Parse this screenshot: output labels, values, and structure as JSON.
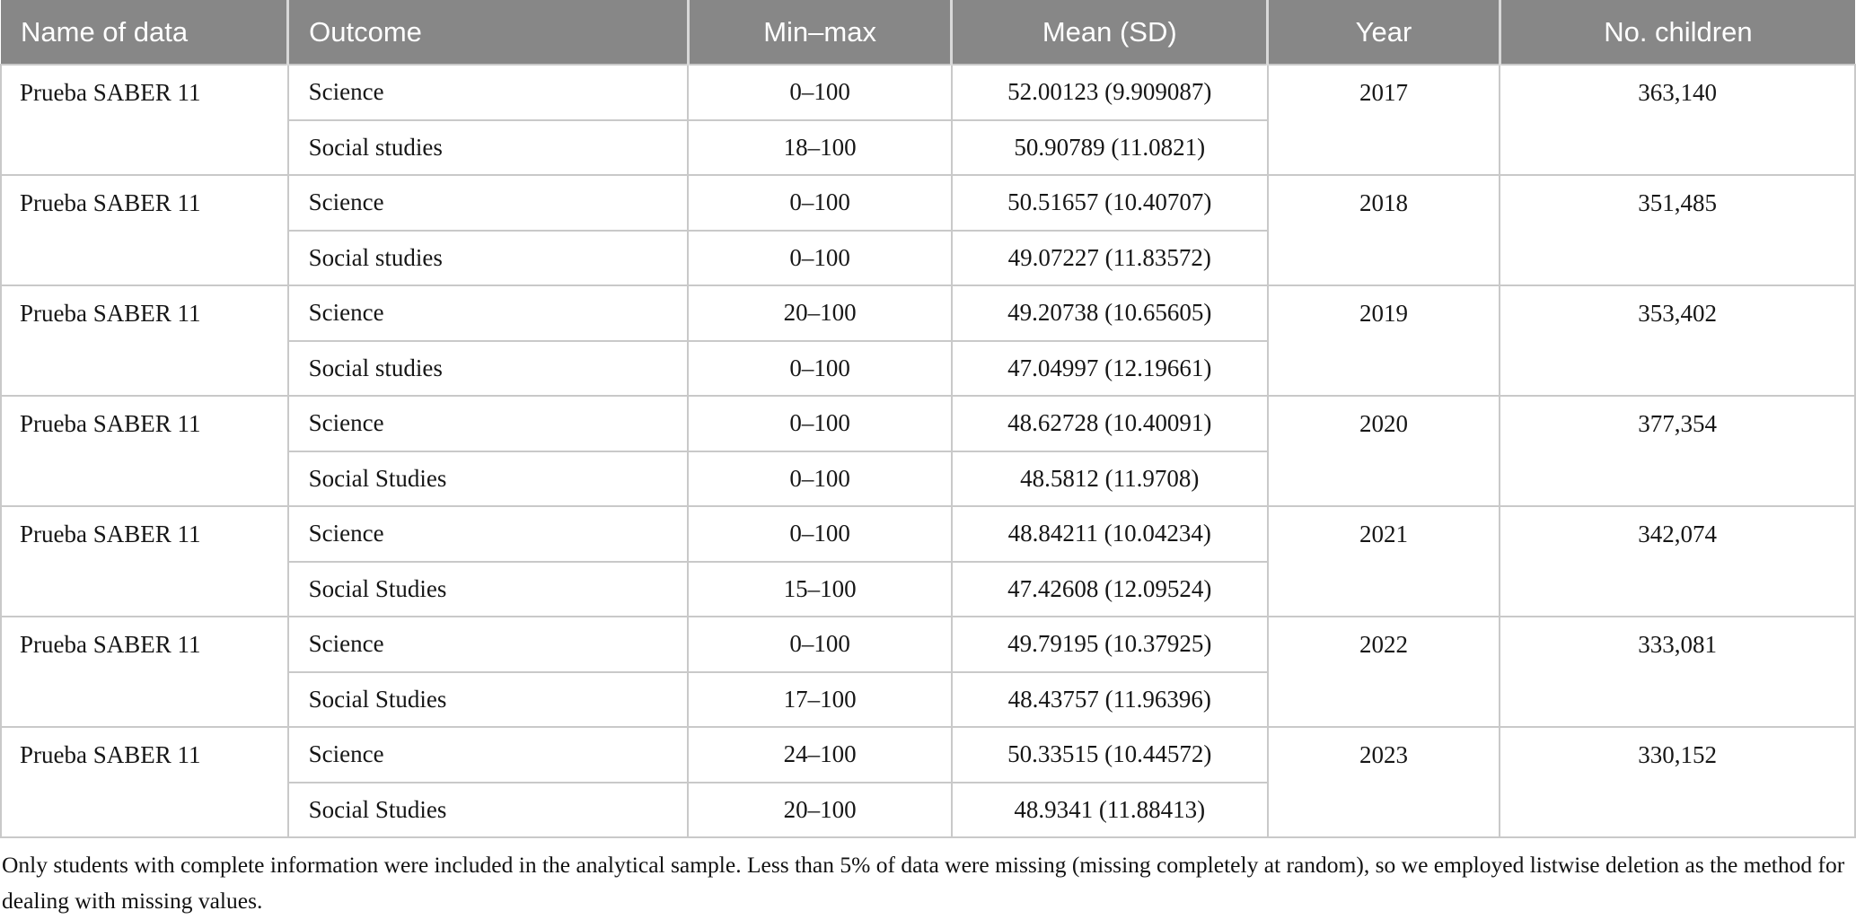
{
  "colors": {
    "header_background": "#878787",
    "header_text": "#ffffff",
    "border": "#c9c9c9",
    "body_text": "#161616"
  },
  "table": {
    "columns": [
      "Name of data",
      "Outcome",
      "Min–max",
      "Mean (SD)",
      "Year",
      "No. children"
    ],
    "groups": [
      {
        "name": "Prueba SABER 11",
        "year": "2017",
        "children": "363,140",
        "rows": [
          {
            "outcome": "Science",
            "min_max": "0–100",
            "mean_sd": "52.00123 (9.909087)"
          },
          {
            "outcome": "Social studies",
            "min_max": "18–100",
            "mean_sd": "50.90789 (11.0821)"
          }
        ]
      },
      {
        "name": "Prueba SABER 11",
        "year": "2018",
        "children": "351,485",
        "rows": [
          {
            "outcome": "Science",
            "min_max": "0–100",
            "mean_sd": "50.51657 (10.40707)"
          },
          {
            "outcome": "Social studies",
            "min_max": "0–100",
            "mean_sd": "49.07227 (11.83572)"
          }
        ]
      },
      {
        "name": "Prueba SABER 11",
        "year": "2019",
        "children": "353,402",
        "rows": [
          {
            "outcome": "Science",
            "min_max": "20–100",
            "mean_sd": "49.20738 (10.65605)"
          },
          {
            "outcome": "Social studies",
            "min_max": "0–100",
            "mean_sd": "47.04997 (12.19661)"
          }
        ]
      },
      {
        "name": "Prueba SABER 11",
        "year": "2020",
        "children": "377,354",
        "rows": [
          {
            "outcome": "Science",
            "min_max": "0–100",
            "mean_sd": "48.62728 (10.40091)"
          },
          {
            "outcome": "Social Studies",
            "min_max": "0–100",
            "mean_sd": "48.5812 (11.9708)"
          }
        ]
      },
      {
        "name": "Prueba SABER 11",
        "year": "2021",
        "children": "342,074",
        "rows": [
          {
            "outcome": "Science",
            "min_max": "0–100",
            "mean_sd": "48.84211 (10.04234)"
          },
          {
            "outcome": "Social Studies",
            "min_max": "15–100",
            "mean_sd": "47.42608 (12.09524)"
          }
        ]
      },
      {
        "name": "Prueba SABER 11",
        "year": "2022",
        "children": "333,081",
        "rows": [
          {
            "outcome": "Science",
            "min_max": "0–100",
            "mean_sd": "49.79195 (10.37925)"
          },
          {
            "outcome": "Social Studies",
            "min_max": "17–100",
            "mean_sd": "48.43757 (11.96396)"
          }
        ]
      },
      {
        "name": "Prueba SABER 11",
        "year": "2023",
        "children": "330,152",
        "rows": [
          {
            "outcome": "Science",
            "min_max": "24–100",
            "mean_sd": "50.33515 (10.44572)"
          },
          {
            "outcome": "Social Studies",
            "min_max": "20–100",
            "mean_sd": "48.9341 (11.88413)"
          }
        ]
      }
    ]
  },
  "footnote": "Only students with complete information were included in the analytical sample. Less than 5% of data were missing (missing completely at random), so we employed listwise deletion as the method for dealing with missing values."
}
